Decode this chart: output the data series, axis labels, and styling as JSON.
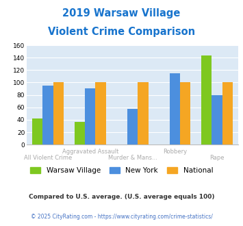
{
  "title_line1": "2019 Warsaw Village",
  "title_line2": "Violent Crime Comparison",
  "title_color": "#1874cd",
  "categories": [
    "All Violent Crime",
    "Aggravated Assault",
    "Murder & Mans...",
    "Robbery",
    "Rape"
  ],
  "warsaw_values": [
    42,
    37,
    null,
    null,
    144
  ],
  "newyork_values": [
    95,
    91,
    58,
    115,
    80
  ],
  "national_values": [
    100,
    100,
    100,
    100,
    100
  ],
  "color_warsaw": "#7ec820",
  "color_newyork": "#4c8fde",
  "color_national": "#f5a623",
  "legend_warsaw": "Warsaw Village",
  "legend_newyork": "New York",
  "legend_national": "National",
  "ylabel_max": 160,
  "yticks": [
    0,
    20,
    40,
    60,
    80,
    100,
    120,
    140,
    160
  ],
  "footnote1": "Compared to U.S. average. (U.S. average equals 100)",
  "footnote2": "© 2025 CityRating.com - https://www.cityrating.com/crime-statistics/",
  "footnote1_color": "#333333",
  "footnote2_color": "#4472c4",
  "bg_color": "#dce9f5",
  "bar_width": 0.25,
  "xlabels_upper": [
    "",
    "Aggravated Assault",
    "",
    "Robbery",
    ""
  ],
  "xlabels_lower": [
    "All Violent Crime",
    "",
    "Murder & Mans...",
    "",
    "Rape"
  ],
  "label_color": "#aaaaaa"
}
